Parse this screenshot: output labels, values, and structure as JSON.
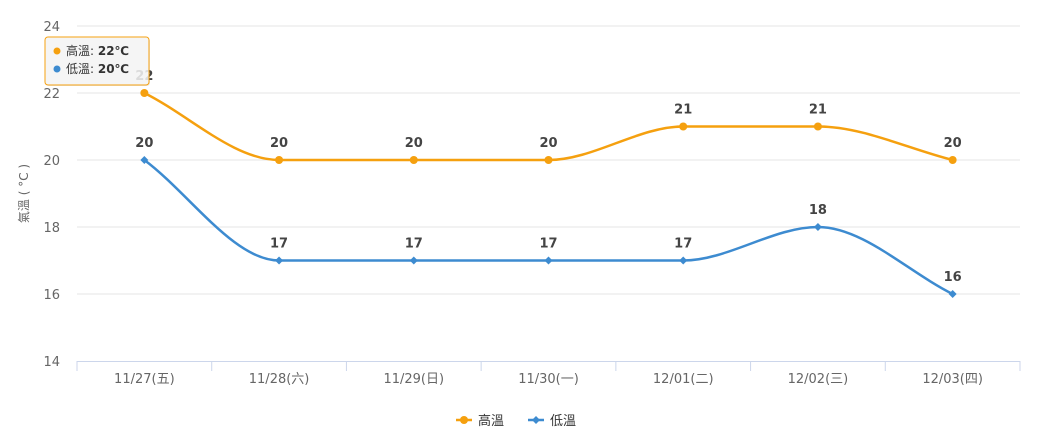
{
  "chart_data": {
    "type": "line",
    "categories": [
      "11/27(五)",
      "11/28(六)",
      "11/29(日)",
      "11/30(一)",
      "12/01(二)",
      "12/02(三)",
      "12/03(四)"
    ],
    "series": [
      {
        "name": "高溫",
        "color": "#f5a00f",
        "marker": "circle",
        "values": [
          22,
          20,
          20,
          20,
          21,
          21,
          20
        ]
      },
      {
        "name": "低溫",
        "color": "#3d8bd0",
        "marker": "diamond",
        "values": [
          20,
          17,
          17,
          17,
          17,
          18,
          16
        ]
      }
    ],
    "ylabel": "氣溫 ( °C )",
    "ylim": [
      14,
      24
    ],
    "yticks": [
      14,
      16,
      18,
      20,
      22,
      24
    ],
    "grid": true,
    "legend": "bottom",
    "tooltip": {
      "visible": true,
      "category_index": 0,
      "rows": [
        {
          "label": "高溫: ",
          "value": "22℃",
          "color": "#f5a00f"
        },
        {
          "label": "低溫: ",
          "value": "20℃",
          "color": "#3d8bd0"
        }
      ],
      "border_color": "#f5a00f"
    }
  }
}
